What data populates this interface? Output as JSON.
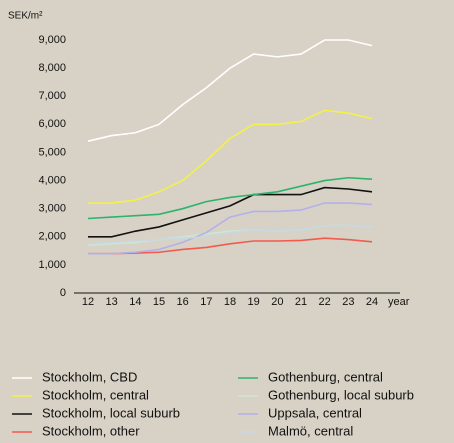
{
  "chart_data": {
    "type": "line",
    "y_label": "SEK/m²",
    "x_label": "year",
    "categories": [
      "12",
      "13",
      "14",
      "15",
      "16",
      "17",
      "18",
      "19",
      "20",
      "21",
      "22",
      "23",
      "24"
    ],
    "ylim": [
      0,
      9000
    ],
    "yticks": [
      0,
      {
        "value": 1000,
        "label": "1,000"
      },
      {
        "value": 2000,
        "label": "2,000"
      },
      {
        "value": 3000,
        "label": "3,000"
      },
      {
        "value": 4000,
        "label": "4,000"
      },
      {
        "value": 5000,
        "label": "5,000"
      },
      {
        "value": 6000,
        "label": "6,000"
      },
      {
        "value": 7000,
        "label": "7,000"
      },
      {
        "value": 8000,
        "label": "8,000"
      },
      {
        "value": 9000,
        "label": "9,000"
      }
    ],
    "series": [
      {
        "name": "Stockholm, CBD",
        "color": "#ffffff",
        "values": [
          5400,
          5600,
          5700,
          6000,
          6700,
          7300,
          8000,
          8500,
          8400,
          8500,
          9000,
          9000,
          8800
        ]
      },
      {
        "name": "Stockholm, central",
        "color": "#f3f04a",
        "values": [
          3200,
          3200,
          3300,
          3600,
          4000,
          4700,
          5500,
          6000,
          6000,
          6100,
          6500,
          6400,
          6200
        ]
      },
      {
        "name": "Stockholm, local suburb",
        "color": "#111111",
        "values": [
          2000,
          2000,
          2200,
          2350,
          2600,
          2850,
          3100,
          3500,
          3500,
          3500,
          3750,
          3700,
          3600
        ]
      },
      {
        "name": "Stockholm, other",
        "color": "#f25a4e",
        "values": [
          1400,
          1400,
          1420,
          1450,
          1550,
          1620,
          1750,
          1850,
          1850,
          1870,
          1950,
          1900,
          1820
        ]
      },
      {
        "name": "Gothenburg, central",
        "color": "#2fb36a",
        "values": [
          2650,
          2700,
          2750,
          2800,
          3000,
          3250,
          3400,
          3500,
          3600,
          3800,
          4000,
          4100,
          4050
        ]
      },
      {
        "name": "Gothenburg, local suburb",
        "color": "#cfe6d2",
        "values": [
          1700,
          1750,
          1800,
          1900,
          2000,
          2100,
          2200,
          2250,
          2200,
          2250,
          2400,
          2400,
          2350
        ]
      },
      {
        "name": "Uppsala, central",
        "color": "#b3b0ea",
        "values": [
          1400,
          1400,
          1450,
          1550,
          1800,
          2150,
          2700,
          2900,
          2900,
          2950,
          3200,
          3200,
          3150
        ]
      },
      {
        "name": "Malmö, central",
        "color": "#c7d8e2",
        "values": [
          1750,
          1800,
          1850,
          1900,
          1950,
          2000,
          2150,
          2250,
          2200,
          2250,
          2400,
          2400,
          2350
        ]
      }
    ]
  }
}
